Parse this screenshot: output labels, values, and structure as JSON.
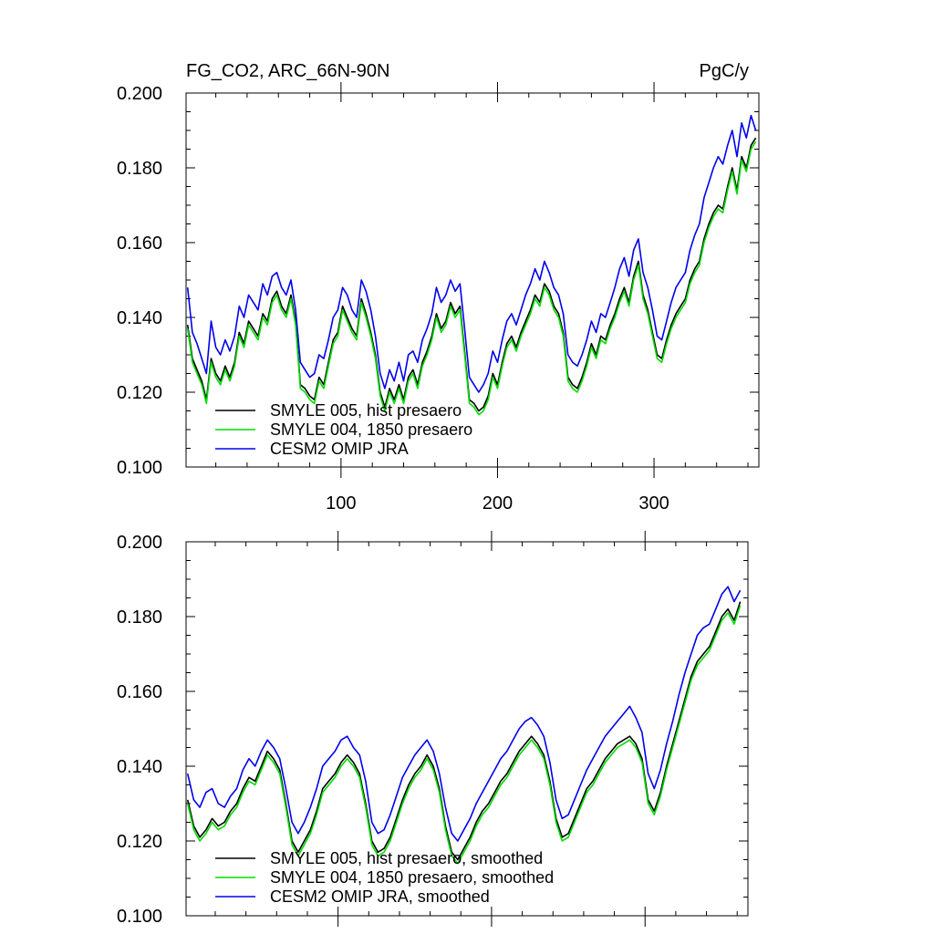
{
  "colors": {
    "black": "#000000",
    "green": "#00dd00",
    "blue": "#0000ee"
  },
  "chart_data": [
    {
      "type": "line",
      "title": "FG_CO2, ARC_66N-90N",
      "units": "PgC/y",
      "xlim": [
        1,
        367
      ],
      "ylim": [
        0.1,
        0.2
      ],
      "x_ticks": [
        100,
        200,
        300
      ],
      "y_ticks": [
        "0.100",
        "0.120",
        "0.140",
        "0.160",
        "0.180",
        "0.200"
      ],
      "grid": false,
      "legend_position": "bottom-left",
      "series_x": [
        2,
        5,
        8,
        11,
        14,
        17,
        20,
        23,
        26,
        29,
        32,
        35,
        38,
        41,
        44,
        47,
        50,
        53,
        56,
        59,
        62,
        65,
        68,
        71,
        74,
        77,
        80,
        83,
        86,
        89,
        92,
        95,
        98,
        101,
        104,
        107,
        110,
        113,
        116,
        119,
        122,
        125,
        128,
        131,
        134,
        137,
        140,
        143,
        146,
        149,
        152,
        155,
        158,
        161,
        164,
        167,
        170,
        173,
        176,
        179,
        182,
        185,
        188,
        191,
        194,
        197,
        200,
        203,
        206,
        209,
        212,
        215,
        218,
        221,
        224,
        227,
        230,
        233,
        236,
        239,
        242,
        245,
        248,
        251,
        254,
        257,
        260,
        263,
        266,
        269,
        272,
        275,
        278,
        281,
        284,
        287,
        290,
        293,
        296,
        299,
        302,
        305,
        308,
        311,
        314,
        317,
        320,
        323,
        326,
        329,
        332,
        335,
        338,
        341,
        344,
        347,
        350,
        353,
        356,
        359,
        362,
        365
      ],
      "series": [
        {
          "name": "SMYLE 005, hist presaero",
          "color": "#000000",
          "values": [
            0.138,
            0.129,
            0.126,
            0.123,
            0.118,
            0.129,
            0.125,
            0.123,
            0.127,
            0.124,
            0.128,
            0.136,
            0.133,
            0.139,
            0.137,
            0.135,
            0.141,
            0.139,
            0.145,
            0.147,
            0.143,
            0.141,
            0.146,
            0.139,
            0.122,
            0.121,
            0.119,
            0.118,
            0.124,
            0.122,
            0.128,
            0.134,
            0.136,
            0.143,
            0.14,
            0.137,
            0.135,
            0.145,
            0.141,
            0.136,
            0.13,
            0.12,
            0.116,
            0.121,
            0.118,
            0.122,
            0.118,
            0.124,
            0.126,
            0.122,
            0.128,
            0.131,
            0.135,
            0.141,
            0.137,
            0.139,
            0.144,
            0.141,
            0.143,
            0.131,
            0.118,
            0.117,
            0.115,
            0.116,
            0.119,
            0.125,
            0.122,
            0.128,
            0.133,
            0.135,
            0.132,
            0.136,
            0.139,
            0.142,
            0.146,
            0.144,
            0.149,
            0.147,
            0.143,
            0.141,
            0.136,
            0.124,
            0.122,
            0.121,
            0.124,
            0.128,
            0.133,
            0.13,
            0.135,
            0.134,
            0.138,
            0.141,
            0.145,
            0.148,
            0.144,
            0.151,
            0.155,
            0.146,
            0.142,
            0.136,
            0.13,
            0.129,
            0.134,
            0.138,
            0.141,
            0.143,
            0.145,
            0.15,
            0.153,
            0.155,
            0.161,
            0.165,
            0.168,
            0.17,
            0.169,
            0.175,
            0.18,
            0.174,
            0.183,
            0.18,
            0.186,
            0.188
          ]
        },
        {
          "name": "SMYLE 004, 1850 presaero",
          "color": "#00dd00",
          "values": [
            0.137,
            0.128,
            0.125,
            0.122,
            0.117,
            0.128,
            0.124,
            0.122,
            0.126,
            0.123,
            0.127,
            0.135,
            0.132,
            0.138,
            0.136,
            0.134,
            0.14,
            0.138,
            0.144,
            0.146,
            0.142,
            0.14,
            0.145,
            0.138,
            0.121,
            0.12,
            0.118,
            0.117,
            0.123,
            0.121,
            0.127,
            0.133,
            0.135,
            0.142,
            0.139,
            0.136,
            0.134,
            0.144,
            0.14,
            0.135,
            0.129,
            0.119,
            0.115,
            0.12,
            0.117,
            0.121,
            0.117,
            0.123,
            0.125,
            0.121,
            0.127,
            0.13,
            0.134,
            0.14,
            0.136,
            0.138,
            0.143,
            0.14,
            0.142,
            0.13,
            0.117,
            0.116,
            0.114,
            0.115,
            0.118,
            0.124,
            0.121,
            0.127,
            0.132,
            0.134,
            0.131,
            0.135,
            0.138,
            0.141,
            0.145,
            0.143,
            0.148,
            0.146,
            0.142,
            0.14,
            0.135,
            0.123,
            0.121,
            0.12,
            0.123,
            0.127,
            0.132,
            0.129,
            0.134,
            0.133,
            0.137,
            0.14,
            0.144,
            0.147,
            0.143,
            0.15,
            0.154,
            0.145,
            0.141,
            0.135,
            0.129,
            0.128,
            0.133,
            0.137,
            0.14,
            0.142,
            0.144,
            0.149,
            0.152,
            0.154,
            0.16,
            0.164,
            0.167,
            0.169,
            0.168,
            0.174,
            0.179,
            0.173,
            0.182,
            0.179,
            0.185,
            0.187
          ]
        },
        {
          "name": "CESM2 OMIP JRA",
          "color": "#0000ee",
          "values": [
            0.148,
            0.136,
            0.133,
            0.129,
            0.125,
            0.139,
            0.132,
            0.13,
            0.134,
            0.131,
            0.135,
            0.143,
            0.14,
            0.146,
            0.144,
            0.142,
            0.149,
            0.146,
            0.151,
            0.152,
            0.148,
            0.146,
            0.15,
            0.142,
            0.128,
            0.126,
            0.124,
            0.125,
            0.13,
            0.129,
            0.134,
            0.14,
            0.142,
            0.148,
            0.146,
            0.142,
            0.14,
            0.15,
            0.147,
            0.142,
            0.135,
            0.125,
            0.121,
            0.126,
            0.123,
            0.128,
            0.123,
            0.13,
            0.131,
            0.128,
            0.134,
            0.137,
            0.141,
            0.148,
            0.144,
            0.146,
            0.15,
            0.147,
            0.149,
            0.137,
            0.124,
            0.122,
            0.12,
            0.122,
            0.125,
            0.131,
            0.128,
            0.134,
            0.139,
            0.141,
            0.138,
            0.142,
            0.146,
            0.149,
            0.153,
            0.15,
            0.155,
            0.152,
            0.148,
            0.146,
            0.141,
            0.13,
            0.128,
            0.127,
            0.13,
            0.134,
            0.139,
            0.136,
            0.141,
            0.14,
            0.144,
            0.148,
            0.153,
            0.156,
            0.151,
            0.158,
            0.161,
            0.152,
            0.148,
            0.142,
            0.135,
            0.134,
            0.139,
            0.144,
            0.148,
            0.15,
            0.152,
            0.158,
            0.162,
            0.165,
            0.172,
            0.176,
            0.18,
            0.183,
            0.181,
            0.186,
            0.19,
            0.183,
            0.192,
            0.188,
            0.194,
            0.19
          ]
        }
      ]
    },
    {
      "type": "line",
      "title": "",
      "units": "",
      "xlim": [
        1,
        367
      ],
      "ylim": [
        0.1,
        0.2
      ],
      "x_ticks": [
        100,
        200,
        300
      ],
      "y_ticks": [
        "0.100",
        "0.120",
        "0.140",
        "0.160",
        "0.180",
        "0.200"
      ],
      "grid": false,
      "legend_position": "bottom-left",
      "series_x": [
        2,
        6,
        10,
        14,
        18,
        22,
        26,
        30,
        34,
        38,
        42,
        46,
        50,
        54,
        58,
        62,
        66,
        70,
        74,
        78,
        82,
        86,
        90,
        94,
        98,
        102,
        106,
        110,
        114,
        118,
        122,
        126,
        130,
        134,
        138,
        142,
        146,
        150,
        154,
        158,
        162,
        166,
        170,
        174,
        178,
        182,
        186,
        190,
        194,
        198,
        202,
        206,
        210,
        214,
        218,
        222,
        226,
        230,
        234,
        238,
        242,
        246,
        250,
        254,
        258,
        262,
        266,
        270,
        274,
        278,
        282,
        286,
        290,
        294,
        298,
        302,
        306,
        310,
        314,
        318,
        322,
        326,
        330,
        334,
        338,
        342,
        346,
        350,
        354,
        358,
        362
      ],
      "series": [
        {
          "name": "SMYLE 005, hist presaero, smoothed",
          "color": "#000000",
          "values": [
            0.131,
            0.124,
            0.121,
            0.123,
            0.126,
            0.124,
            0.125,
            0.128,
            0.13,
            0.134,
            0.137,
            0.136,
            0.14,
            0.144,
            0.142,
            0.139,
            0.13,
            0.12,
            0.117,
            0.12,
            0.123,
            0.128,
            0.134,
            0.136,
            0.138,
            0.141,
            0.143,
            0.141,
            0.138,
            0.13,
            0.12,
            0.117,
            0.118,
            0.121,
            0.126,
            0.131,
            0.135,
            0.138,
            0.14,
            0.143,
            0.14,
            0.134,
            0.124,
            0.117,
            0.115,
            0.118,
            0.121,
            0.125,
            0.128,
            0.13,
            0.133,
            0.136,
            0.138,
            0.141,
            0.144,
            0.146,
            0.148,
            0.146,
            0.143,
            0.136,
            0.126,
            0.121,
            0.122,
            0.126,
            0.13,
            0.134,
            0.136,
            0.139,
            0.142,
            0.144,
            0.146,
            0.147,
            0.148,
            0.146,
            0.142,
            0.131,
            0.128,
            0.133,
            0.14,
            0.146,
            0.152,
            0.158,
            0.164,
            0.168,
            0.17,
            0.172,
            0.176,
            0.18,
            0.182,
            0.179,
            0.184
          ]
        },
        {
          "name": "SMYLE 004, 1850 presaero, smoothed",
          "color": "#00dd00",
          "values": [
            0.13,
            0.123,
            0.12,
            0.122,
            0.125,
            0.123,
            0.124,
            0.127,
            0.129,
            0.133,
            0.136,
            0.135,
            0.139,
            0.143,
            0.141,
            0.138,
            0.129,
            0.119,
            0.116,
            0.119,
            0.122,
            0.127,
            0.133,
            0.135,
            0.137,
            0.14,
            0.142,
            0.14,
            0.137,
            0.129,
            0.119,
            0.116,
            0.117,
            0.12,
            0.125,
            0.13,
            0.134,
            0.137,
            0.139,
            0.142,
            0.139,
            0.133,
            0.123,
            0.116,
            0.114,
            0.117,
            0.12,
            0.124,
            0.127,
            0.129,
            0.132,
            0.135,
            0.137,
            0.14,
            0.143,
            0.145,
            0.147,
            0.145,
            0.142,
            0.135,
            0.125,
            0.12,
            0.121,
            0.125,
            0.129,
            0.133,
            0.135,
            0.138,
            0.141,
            0.143,
            0.145,
            0.146,
            0.147,
            0.145,
            0.141,
            0.13,
            0.127,
            0.132,
            0.139,
            0.145,
            0.151,
            0.157,
            0.163,
            0.167,
            0.169,
            0.171,
            0.175,
            0.179,
            0.181,
            0.178,
            0.183
          ]
        },
        {
          "name": "CESM2 OMIP JRA, smoothed",
          "color": "#0000ee",
          "values": [
            0.138,
            0.131,
            0.129,
            0.133,
            0.134,
            0.13,
            0.129,
            0.132,
            0.134,
            0.139,
            0.142,
            0.14,
            0.144,
            0.147,
            0.145,
            0.142,
            0.134,
            0.125,
            0.122,
            0.125,
            0.129,
            0.134,
            0.14,
            0.142,
            0.144,
            0.147,
            0.148,
            0.145,
            0.143,
            0.136,
            0.125,
            0.122,
            0.123,
            0.127,
            0.132,
            0.137,
            0.14,
            0.143,
            0.145,
            0.147,
            0.144,
            0.138,
            0.129,
            0.122,
            0.12,
            0.123,
            0.126,
            0.13,
            0.133,
            0.136,
            0.139,
            0.142,
            0.144,
            0.147,
            0.15,
            0.152,
            0.153,
            0.151,
            0.148,
            0.141,
            0.131,
            0.126,
            0.127,
            0.131,
            0.135,
            0.139,
            0.142,
            0.145,
            0.148,
            0.15,
            0.152,
            0.154,
            0.156,
            0.153,
            0.149,
            0.138,
            0.134,
            0.139,
            0.146,
            0.152,
            0.159,
            0.165,
            0.17,
            0.175,
            0.177,
            0.178,
            0.182,
            0.186,
            0.188,
            0.184,
            0.187
          ]
        }
      ]
    }
  ]
}
